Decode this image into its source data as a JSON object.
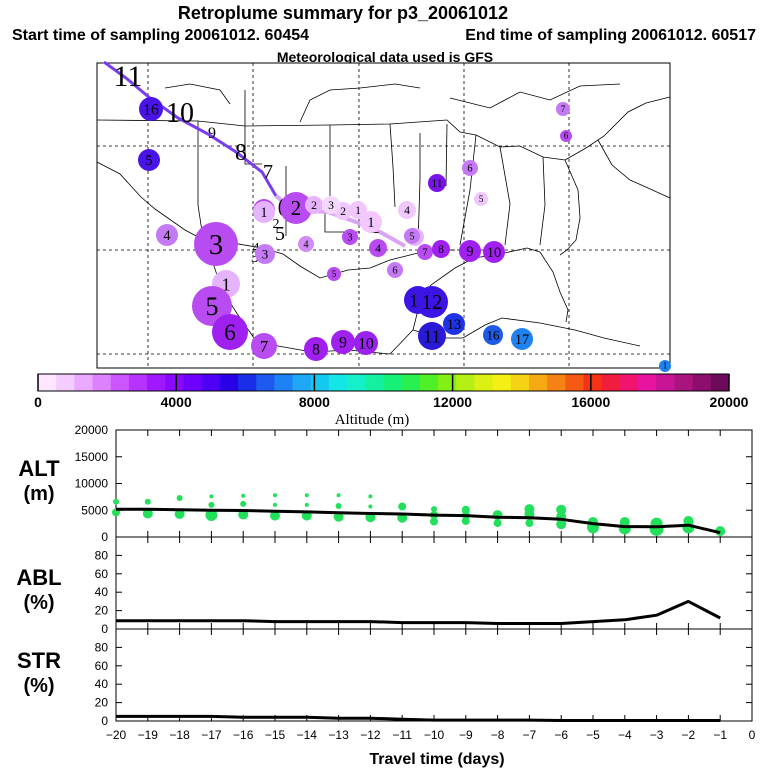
{
  "header": {
    "title": "Retroplume summary for p3_20061012",
    "start_label": "Start time of sampling 20061012. 60454",
    "end_label": "End time of sampling 20061012. 60517",
    "met_label": "Meteorological data used is GFS"
  },
  "colors": {
    "alt_dots": "#22e05a",
    "line": "#000000",
    "track": "#7a3cf0"
  },
  "chart_data": [
    {
      "type": "map",
      "name": "retroplume-map",
      "track_labels": [
        "11",
        "10",
        "9",
        "8",
        "7",
        "6",
        "5",
        "4",
        "3",
        "2",
        "1"
      ],
      "plume_points": [
        {
          "label": "1",
          "color": "#e6b3ff"
        },
        {
          "label": "2",
          "color": "#b84cf0"
        },
        {
          "label": "3",
          "color": "#b84cf0"
        },
        {
          "label": "4",
          "color": "#c57af5"
        },
        {
          "label": "5",
          "color": "#b84cf0"
        },
        {
          "label": "1",
          "color": "#f2c8ff"
        },
        {
          "label": "2",
          "color": "#b84cf0"
        },
        {
          "label": "3",
          "color": "#c57af5"
        },
        {
          "label": "4",
          "color": "#d28cf5"
        },
        {
          "label": "5",
          "color": "#e6b3ff"
        },
        {
          "label": "1",
          "color": "#e6b3ff"
        },
        {
          "label": "2",
          "color": "#e6b3ff"
        },
        {
          "label": "3",
          "color": "#b84cf0"
        },
        {
          "label": "4",
          "color": "#b84cf0"
        },
        {
          "label": "5",
          "color": "#c57af5"
        },
        {
          "label": "6",
          "color": "#a020f0"
        },
        {
          "label": "7",
          "color": "#b84cf0"
        },
        {
          "label": "8",
          "color": "#a020f0"
        },
        {
          "label": "9",
          "color": "#a020f0"
        },
        {
          "label": "10",
          "color": "#9922ee"
        },
        {
          "label": "1",
          "color": "#f0c8ff"
        },
        {
          "label": "2",
          "color": "#f0c8ff"
        },
        {
          "label": "3",
          "color": "#f5d8ff"
        },
        {
          "label": "4",
          "color": "#f0c8ff"
        },
        {
          "label": "5",
          "color": "#f0c8ff"
        },
        {
          "label": "6",
          "color": "#c57af5"
        },
        {
          "label": "7",
          "color": "#b84cf0"
        },
        {
          "label": "8",
          "color": "#a020f0"
        },
        {
          "label": "9",
          "color": "#a020f0"
        },
        {
          "label": "10",
          "color": "#a020f0"
        },
        {
          "label": "11",
          "color": "#3c14e6"
        },
        {
          "label": "12",
          "color": "#3c14e6"
        },
        {
          "label": "11",
          "color": "#2a1ad8"
        },
        {
          "label": "13",
          "color": "#1e32e6"
        },
        {
          "label": "16",
          "color": "#1e5ae6"
        },
        {
          "label": "17",
          "color": "#1e82f0"
        },
        {
          "label": "6",
          "color": "#c57af5"
        },
        {
          "label": "7",
          "color": "#c57af5"
        },
        {
          "label": "6",
          "color": "#b84cf0"
        },
        {
          "label": "5",
          "color": "#b84cf0"
        },
        {
          "label": "11",
          "color": "#7a14e6"
        },
        {
          "label": "16",
          "color": "#4b14e6"
        },
        {
          "label": "5",
          "color": "#4b14e6"
        },
        {
          "label": "1",
          "color": "#1e82f0"
        }
      ],
      "colorbar": {
        "label": "Altitude (m)",
        "ticks": [
          "0",
          "4000",
          "8000",
          "12000",
          "16000",
          "20000"
        ],
        "colors": [
          "#fde6ff",
          "#f5ccff",
          "#eaaaff",
          "#dc82ff",
          "#cc55ff",
          "#b833ff",
          "#a018ff",
          "#8a0aff",
          "#6e00ff",
          "#4d00f5",
          "#2a00e8",
          "#1a2ee8",
          "#1e5af0",
          "#1e82f5",
          "#1ea8f5",
          "#14c8f0",
          "#14e6e6",
          "#14f0c8",
          "#14f0a0",
          "#14f078",
          "#28f050",
          "#50f028",
          "#82f014",
          "#b4f014",
          "#dcf014",
          "#f5f014",
          "#f5d214",
          "#f5aa14",
          "#f58214",
          "#f55a14",
          "#f53214",
          "#f01e3c",
          "#f0146e",
          "#e614a0",
          "#c81496",
          "#aa147d",
          "#8c0f6e",
          "#6e0a5a"
        ]
      }
    },
    {
      "type": "scatter+line",
      "name": "altitude",
      "ylabel_lines": [
        "ALT",
        "(m)"
      ],
      "yticks": [
        "0",
        "5000",
        "10000",
        "15000",
        "20000"
      ],
      "ylim": [
        0,
        20000
      ],
      "xlim": [
        -20,
        0
      ],
      "line": {
        "x": [
          -20,
          -19,
          -18,
          -17,
          -16,
          -15,
          -14,
          -13,
          -12,
          -11,
          -10,
          -9,
          -8,
          -7,
          -6,
          -5,
          -4,
          -3,
          -2,
          -1
        ],
        "y": [
          5200,
          5200,
          5100,
          5000,
          4950,
          4800,
          4700,
          4550,
          4400,
          4300,
          4100,
          4000,
          3700,
          3600,
          3300,
          2500,
          1950,
          1900,
          2200,
          800
        ]
      },
      "dots": [
        {
          "x": -20,
          "y": 4600,
          "r": 4
        },
        {
          "x": -20,
          "y": 6600,
          "r": 3
        },
        {
          "x": -19,
          "y": 4400,
          "r": 5
        },
        {
          "x": -19,
          "y": 6600,
          "r": 3
        },
        {
          "x": -18,
          "y": 4300,
          "r": 5
        },
        {
          "x": -18,
          "y": 7300,
          "r": 3
        },
        {
          "x": -17,
          "y": 4100,
          "r": 6
        },
        {
          "x": -17,
          "y": 6000,
          "r": 3
        },
        {
          "x": -17,
          "y": 7600,
          "r": 2
        },
        {
          "x": -16,
          "y": 4200,
          "r": 5
        },
        {
          "x": -16,
          "y": 6200,
          "r": 3
        },
        {
          "x": -16,
          "y": 7700,
          "r": 2
        },
        {
          "x": -15,
          "y": 4000,
          "r": 5
        },
        {
          "x": -15,
          "y": 6000,
          "r": 2
        },
        {
          "x": -15,
          "y": 7800,
          "r": 2
        },
        {
          "x": -14,
          "y": 4000,
          "r": 5
        },
        {
          "x": -14,
          "y": 6000,
          "r": 2
        },
        {
          "x": -14,
          "y": 7800,
          "r": 2
        },
        {
          "x": -13,
          "y": 3800,
          "r": 5
        },
        {
          "x": -13,
          "y": 5800,
          "r": 3
        },
        {
          "x": -13,
          "y": 7800,
          "r": 2
        },
        {
          "x": -12,
          "y": 3700,
          "r": 5
        },
        {
          "x": -12,
          "y": 5700,
          "r": 2
        },
        {
          "x": -12,
          "y": 7600,
          "r": 2
        },
        {
          "x": -11,
          "y": 3600,
          "r": 5
        },
        {
          "x": -11,
          "y": 5700,
          "r": 4
        },
        {
          "x": -10,
          "y": 2900,
          "r": 4
        },
        {
          "x": -10,
          "y": 4100,
          "r": 4
        },
        {
          "x": -10,
          "y": 5200,
          "r": 3
        },
        {
          "x": -9,
          "y": 3000,
          "r": 4
        },
        {
          "x": -9,
          "y": 4100,
          "r": 4
        },
        {
          "x": -9,
          "y": 5100,
          "r": 4
        },
        {
          "x": -8,
          "y": 2600,
          "r": 4
        },
        {
          "x": -8,
          "y": 4100,
          "r": 5
        },
        {
          "x": -7,
          "y": 2600,
          "r": 4
        },
        {
          "x": -7,
          "y": 4200,
          "r": 5
        },
        {
          "x": -7,
          "y": 5200,
          "r": 5
        },
        {
          "x": -6,
          "y": 2400,
          "r": 5
        },
        {
          "x": -6,
          "y": 3800,
          "r": 5
        },
        {
          "x": -6,
          "y": 5100,
          "r": 5
        },
        {
          "x": -5,
          "y": 1800,
          "r": 6
        },
        {
          "x": -5,
          "y": 2800,
          "r": 5
        },
        {
          "x": -4,
          "y": 1600,
          "r": 6
        },
        {
          "x": -4,
          "y": 2800,
          "r": 5
        },
        {
          "x": -3,
          "y": 1500,
          "r": 7
        },
        {
          "x": -3,
          "y": 2500,
          "r": 6
        },
        {
          "x": -2,
          "y": 1800,
          "r": 6
        },
        {
          "x": -2,
          "y": 3000,
          "r": 5
        },
        {
          "x": -1,
          "y": 1100,
          "r": 5
        }
      ]
    },
    {
      "type": "line",
      "name": "abl",
      "ylabel_lines": [
        "ABL",
        "(%)"
      ],
      "yticks": [
        "0",
        "20",
        "40",
        "60",
        "80"
      ],
      "ylim": [
        0,
        100
      ],
      "xlim": [
        -20,
        0
      ],
      "x": [
        -20,
        -19,
        -18,
        -17,
        -16,
        -15,
        -14,
        -13,
        -12,
        -11,
        -10,
        -9,
        -8,
        -7,
        -6,
        -5,
        -4,
        -3,
        -2,
        -1
      ],
      "y": [
        9,
        9,
        9,
        9,
        9,
        8,
        8,
        8,
        8,
        7,
        7,
        7,
        6,
        6,
        6,
        8,
        10,
        15,
        30,
        12
      ]
    },
    {
      "type": "line",
      "name": "str",
      "ylabel_lines": [
        "STR",
        "(%)"
      ],
      "yticks": [
        "0",
        "20",
        "40",
        "60",
        "80"
      ],
      "ylim": [
        0,
        100
      ],
      "xlim": [
        -20,
        0
      ],
      "x": [
        -20,
        -19,
        -18,
        -17,
        -16,
        -15,
        -14,
        -13,
        -12,
        -11,
        -10,
        -9,
        -8,
        -7,
        -6,
        -5,
        -4,
        -3,
        -2,
        -1
      ],
      "y": [
        5,
        5,
        5,
        5,
        4,
        4,
        4,
        3,
        3,
        2,
        1,
        1,
        1,
        1,
        0.5,
        0.5,
        0.5,
        0.5,
        0.5,
        0.5
      ],
      "xlabel": "Travel time (days)",
      "xticks": [
        "−20",
        "−19",
        "−18",
        "−17",
        "−16",
        "−15",
        "−14",
        "−13",
        "−12",
        "−11",
        "−10",
        "−9",
        "−8",
        "−7",
        "−6",
        "−5",
        "−4",
        "−3",
        "−2",
        "−1",
        "0"
      ]
    }
  ]
}
